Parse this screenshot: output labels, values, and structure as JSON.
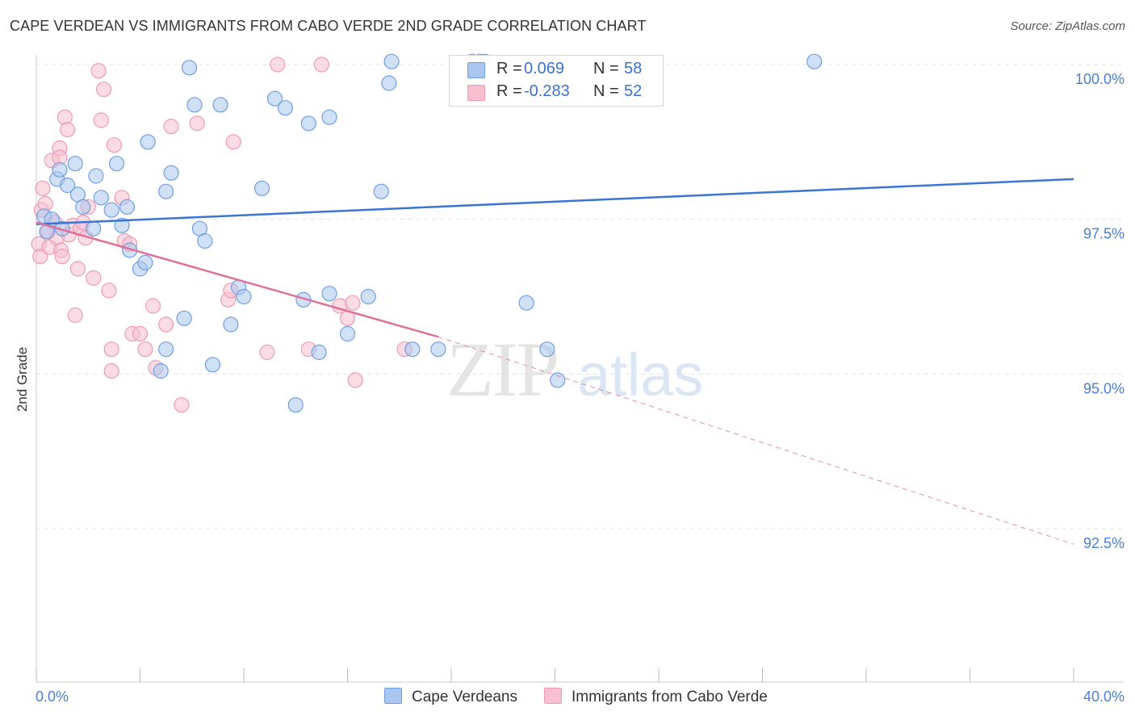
{
  "chart_data": {
    "type": "scatter",
    "title": "CAPE VERDEAN VS IMMIGRANTS FROM CABO VERDE 2ND GRADE CORRELATION CHART",
    "source": "Source: ZipAtlas.com",
    "ylabel": "2nd Grade",
    "xlim": [
      0,
      40
    ],
    "ylim": [
      90.0,
      100.5
    ],
    "x_tick_labels": [
      "0.0%",
      "40.0%"
    ],
    "y_ticks": [
      100.0,
      97.5,
      95.0,
      92.5
    ],
    "y_tick_labels": [
      "100.0%",
      "97.5%",
      "95.0%",
      "92.5%"
    ],
    "watermark": {
      "part1": "ZIP",
      "part2": "atlas"
    },
    "colors": {
      "blue_fill": "#a9c6f0",
      "blue_stroke": "#6f9fe0",
      "blue_line": "#3b75d4",
      "pink_fill": "#f8bfd0",
      "pink_stroke": "#ee9ab5",
      "pink_line": "#e07199",
      "grid": "#e3e3e3",
      "tick_text": "#4a7fd4"
    },
    "series": [
      {
        "name": "Cape Verdeans",
        "R": "0.069",
        "N": "58",
        "trend": {
          "x": [
            0,
            40
          ],
          "y": [
            97.42,
            98.15
          ]
        },
        "points": [
          [
            0.3,
            97.55
          ],
          [
            0.6,
            97.5
          ],
          [
            0.8,
            98.15
          ],
          [
            0.9,
            98.3
          ],
          [
            1.0,
            97.35
          ],
          [
            1.2,
            98.05
          ],
          [
            1.5,
            98.4
          ],
          [
            1.6,
            97.9
          ],
          [
            1.8,
            97.7
          ],
          [
            2.2,
            97.35
          ],
          [
            2.3,
            98.2
          ],
          [
            2.5,
            97.85
          ],
          [
            2.9,
            97.65
          ],
          [
            3.1,
            98.4
          ],
          [
            3.3,
            97.4
          ],
          [
            3.5,
            97.7
          ],
          [
            3.6,
            97.0
          ],
          [
            4.0,
            96.7
          ],
          [
            4.2,
            96.8
          ],
          [
            4.3,
            98.75
          ],
          [
            4.8,
            95.05
          ],
          [
            5.0,
            95.4
          ],
          [
            5.0,
            97.95
          ],
          [
            5.2,
            98.25
          ],
          [
            5.7,
            95.9
          ],
          [
            5.9,
            99.95
          ],
          [
            6.1,
            99.35
          ],
          [
            6.3,
            97.35
          ],
          [
            6.5,
            97.15
          ],
          [
            6.8,
            95.15
          ],
          [
            7.1,
            99.35
          ],
          [
            7.5,
            95.8
          ],
          [
            7.8,
            96.4
          ],
          [
            8.0,
            96.25
          ],
          [
            8.7,
            98.0
          ],
          [
            9.2,
            99.45
          ],
          [
            9.6,
            99.3
          ],
          [
            10.0,
            94.5
          ],
          [
            10.3,
            96.2
          ],
          [
            10.5,
            99.05
          ],
          [
            10.9,
            95.35
          ],
          [
            11.3,
            96.3
          ],
          [
            11.3,
            99.15
          ],
          [
            12.0,
            95.65
          ],
          [
            12.8,
            96.25
          ],
          [
            13.3,
            97.95
          ],
          [
            13.6,
            99.7
          ],
          [
            13.7,
            100.05
          ],
          [
            14.5,
            95.4
          ],
          [
            15.5,
            95.4
          ],
          [
            16.8,
            100.05
          ],
          [
            17.1,
            100.05
          ],
          [
            17.3,
            100.05
          ],
          [
            18.9,
            96.15
          ],
          [
            19.7,
            95.4
          ],
          [
            20.1,
            94.9
          ],
          [
            30.0,
            100.05
          ],
          [
            0.4,
            97.3
          ]
        ]
      },
      {
        "name": "Immigrants from Cabo Verde",
        "R": "-0.283",
        "N": "52",
        "trend": {
          "x": [
            0,
            15.5
          ],
          "y": [
            97.45,
            95.6
          ]
        },
        "trend_dashed": {
          "x": [
            15.5,
            40
          ],
          "y": [
            95.6,
            92.25
          ]
        },
        "points": [
          [
            0.1,
            97.1
          ],
          [
            0.15,
            96.9
          ],
          [
            0.2,
            97.65
          ],
          [
            0.25,
            98.0
          ],
          [
            0.35,
            97.75
          ],
          [
            0.45,
            97.3
          ],
          [
            0.5,
            97.05
          ],
          [
            0.6,
            98.45
          ],
          [
            0.7,
            97.45
          ],
          [
            0.8,
            97.2
          ],
          [
            0.9,
            98.65
          ],
          [
            0.9,
            98.5
          ],
          [
            0.95,
            97.0
          ],
          [
            1.0,
            96.9
          ],
          [
            1.1,
            99.15
          ],
          [
            1.2,
            98.95
          ],
          [
            1.25,
            97.25
          ],
          [
            1.4,
            97.4
          ],
          [
            1.5,
            95.95
          ],
          [
            1.6,
            96.7
          ],
          [
            1.7,
            97.35
          ],
          [
            1.8,
            97.45
          ],
          [
            1.9,
            97.2
          ],
          [
            2.0,
            97.7
          ],
          [
            2.2,
            96.55
          ],
          [
            2.4,
            99.9
          ],
          [
            2.5,
            99.1
          ],
          [
            2.6,
            99.6
          ],
          [
            2.8,
            96.35
          ],
          [
            2.9,
            95.05
          ],
          [
            2.9,
            95.4
          ],
          [
            3.0,
            98.7
          ],
          [
            3.3,
            97.85
          ],
          [
            3.4,
            97.15
          ],
          [
            3.6,
            97.1
          ],
          [
            3.7,
            95.65
          ],
          [
            4.0,
            95.65
          ],
          [
            4.2,
            95.4
          ],
          [
            4.5,
            96.1
          ],
          [
            4.6,
            95.1
          ],
          [
            5.0,
            95.8
          ],
          [
            5.2,
            99.0
          ],
          [
            5.6,
            94.5
          ],
          [
            6.2,
            99.05
          ],
          [
            7.4,
            96.2
          ],
          [
            7.5,
            96.35
          ],
          [
            7.6,
            98.75
          ],
          [
            8.9,
            95.35
          ],
          [
            9.3,
            100.0
          ],
          [
            10.5,
            95.4
          ],
          [
            11.0,
            100.0
          ],
          [
            11.7,
            96.1
          ]
        ]
      }
    ]
  },
  "extra_pink_points": [
    [
      12.0,
      95.9
    ],
    [
      14.2,
      95.4
    ],
    [
      12.2,
      96.15
    ],
    [
      12.3,
      94.9
    ]
  ]
}
